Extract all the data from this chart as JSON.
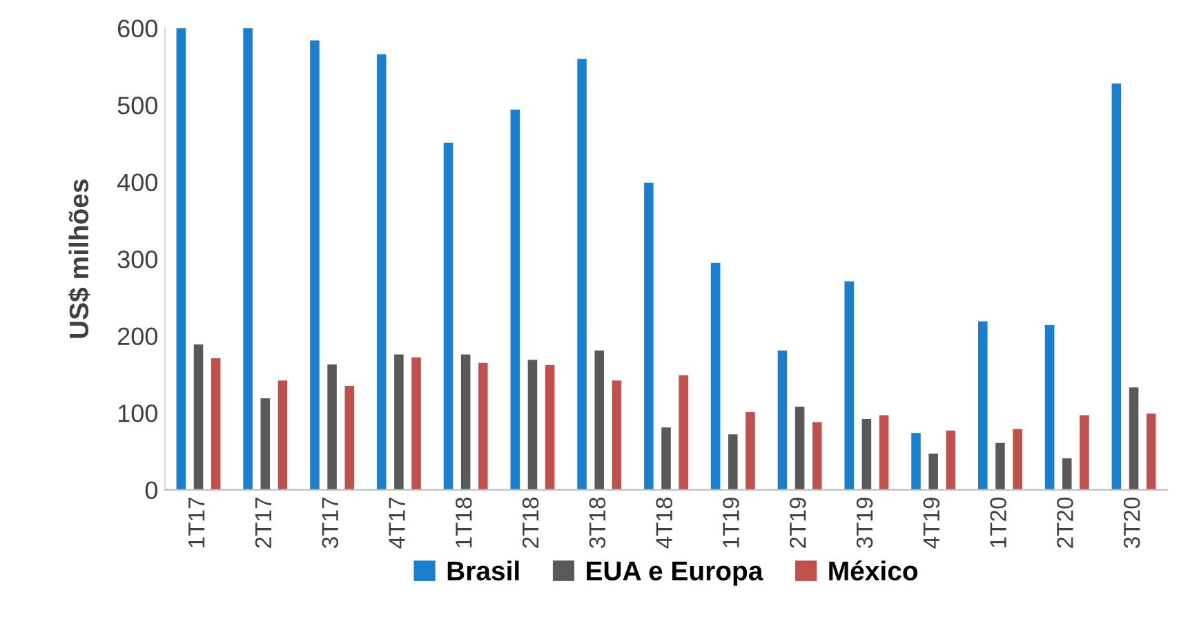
{
  "chart_data": {
    "type": "bar",
    "ylabel": "US$ milhões",
    "categories": [
      "1T17",
      "2T17",
      "3T17",
      "4T17",
      "1T18",
      "2T18",
      "3T18",
      "4T18",
      "1T19",
      "2T19",
      "3T19",
      "4T19",
      "1T20",
      "2T20",
      "3T20"
    ],
    "series": [
      {
        "name": "Brasil",
        "color": "#1b7fcf",
        "values": [
          600,
          600,
          584,
          566,
          451,
          494,
          560,
          399,
          295,
          181,
          271,
          74,
          219,
          214,
          528
        ]
      },
      {
        "name": "EUA e Europa",
        "color": "#595959",
        "values": [
          189,
          119,
          163,
          176,
          176,
          169,
          181,
          81,
          72,
          108,
          92,
          47,
          61,
          41,
          133
        ]
      },
      {
        "name": "México",
        "color": "#c0504d",
        "values": [
          171,
          142,
          135,
          172,
          165,
          162,
          142,
          149,
          101,
          88,
          97,
          77,
          79,
          97,
          99
        ]
      }
    ],
    "ylim": [
      0,
      600
    ],
    "yticks": [
      0,
      100,
      200,
      300,
      400,
      500,
      600
    ],
    "grid": false,
    "legend": "bottom"
  }
}
